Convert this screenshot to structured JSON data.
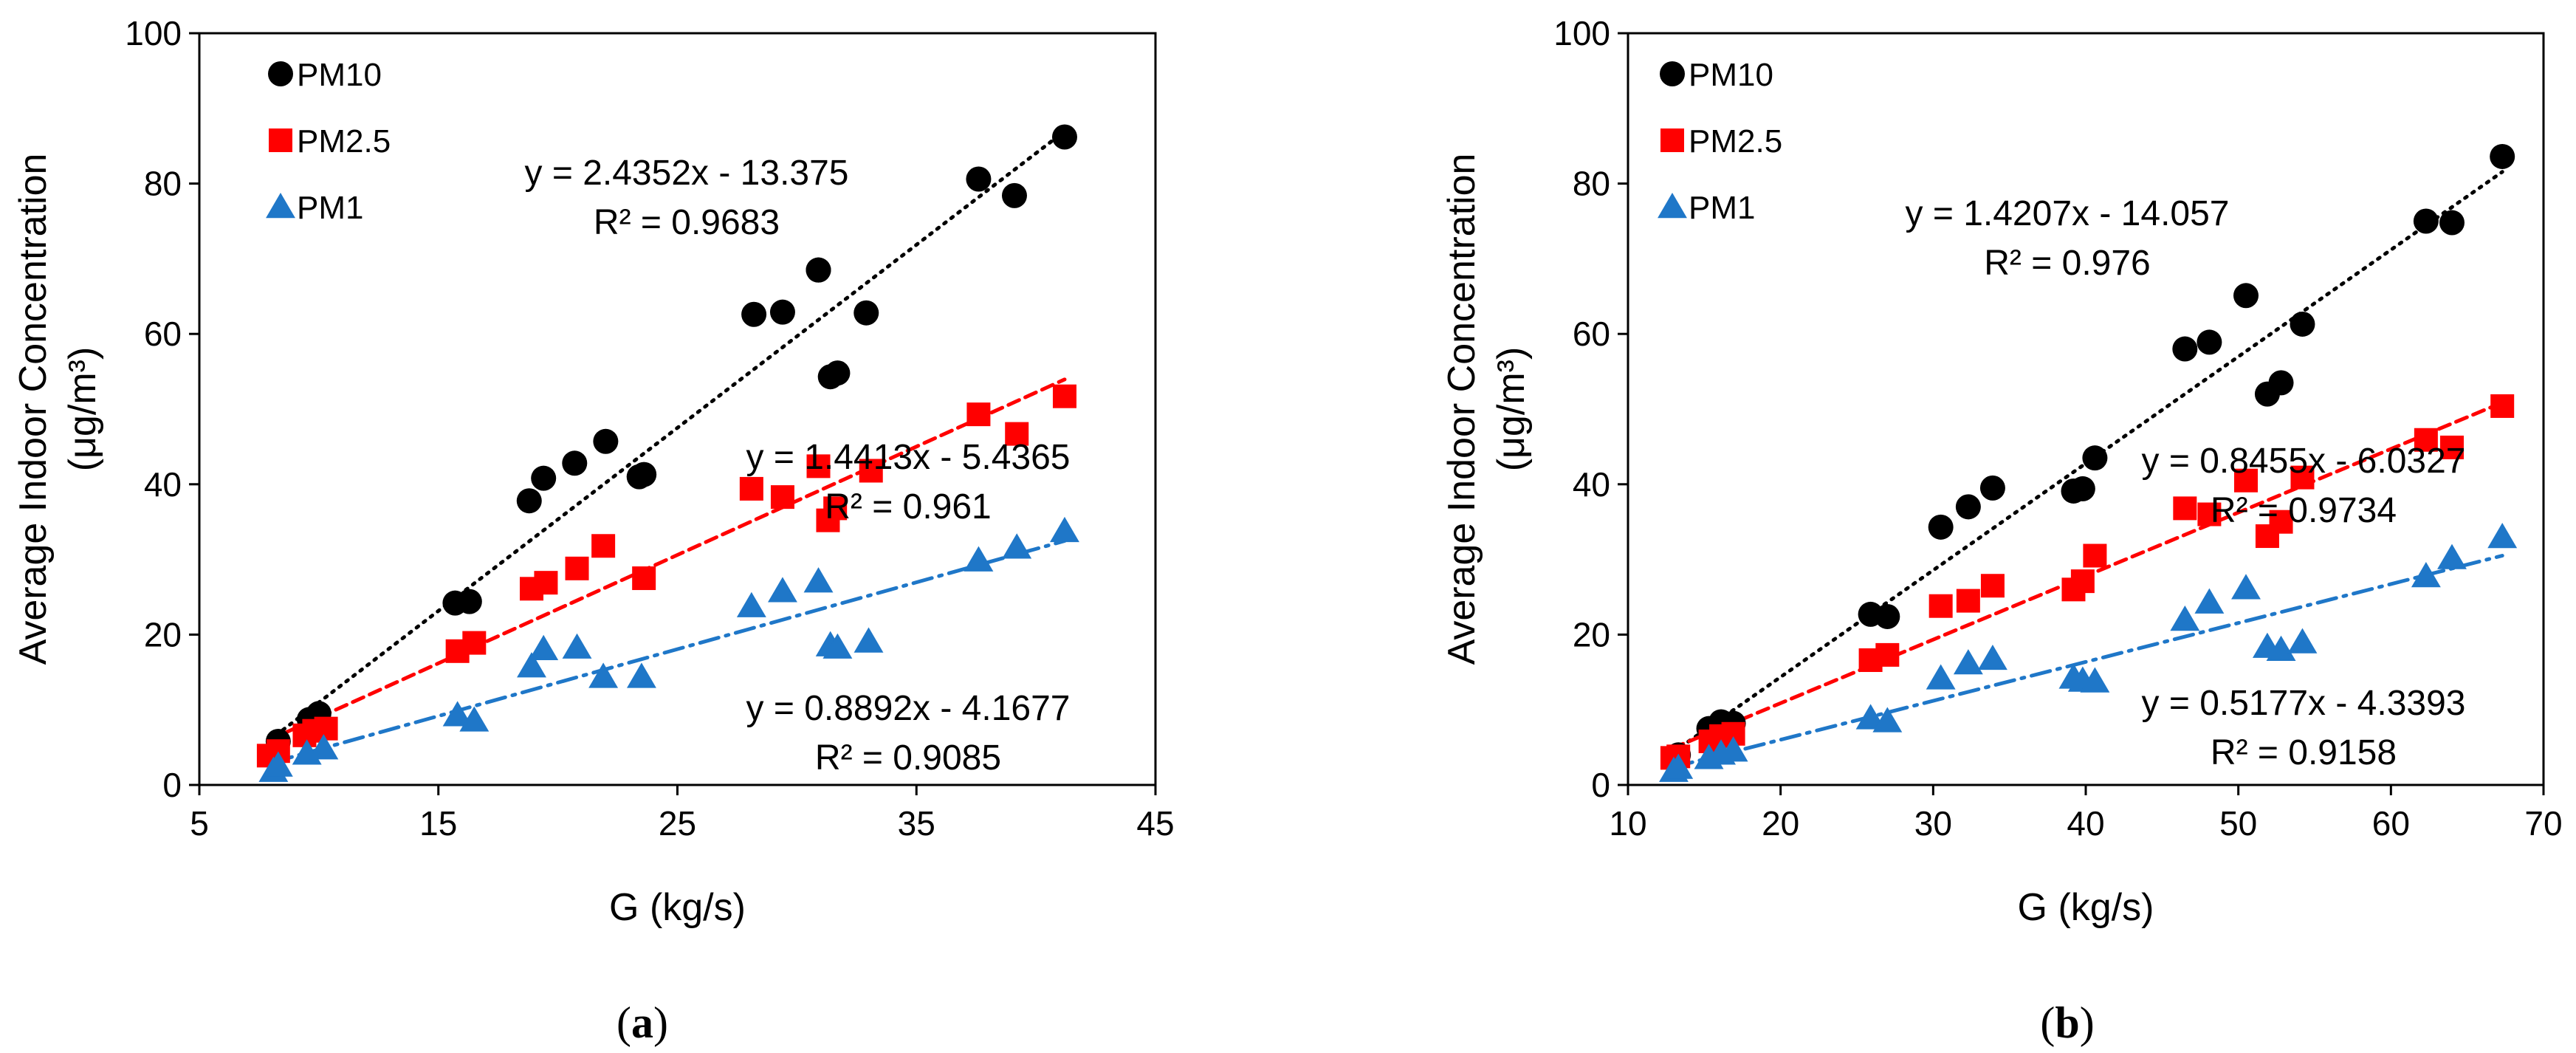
{
  "chart_data": [
    {
      "type": "scatter",
      "panel_label": "a",
      "xlabel": "G (kg/s)",
      "ylabel_line1": "Average Indoor Concentration",
      "ylabel_line2": "(μg/m³)",
      "xlim": [
        5,
        45
      ],
      "ylim": [
        0,
        100
      ],
      "xticks": [
        "5",
        "15",
        "25",
        "35",
        "45"
      ],
      "xtick_values": [
        5,
        15,
        25,
        35,
        45
      ],
      "yticks": [
        "0",
        "20",
        "40",
        "60",
        "80",
        "100"
      ],
      "ytick_values": [
        0,
        20,
        40,
        60,
        80,
        100
      ],
      "series": [
        {
          "name": "PM10",
          "marker": "circle",
          "color": "#000000",
          "x": [
            8.2,
            8.3,
            9.6,
            10.0,
            15.7,
            16.3,
            18.8,
            19.4,
            20.7,
            22.0,
            23.4,
            23.6,
            28.2,
            29.4,
            30.9,
            30.9,
            31.4,
            31.7,
            32.9,
            37.6,
            39.1,
            41.2
          ],
          "y": [
            4.4,
            5.8,
            8.7,
            9.5,
            24.2,
            24.4,
            37.8,
            40.8,
            42.8,
            45.7,
            41.0,
            41.3,
            62.6,
            62.9,
            68.5,
            68.5,
            54.3,
            54.8,
            62.8,
            80.6,
            78.4,
            86.2
          ],
          "trend": {
            "slope": 2.4352,
            "intercept": -13.375,
            "style": "dotted",
            "x_range": [
              8.2,
              41.2
            ]
          },
          "equation": "y = 2.4352x - 13.375",
          "r2": "R² = 0.9683"
        },
        {
          "name": "PM2.5",
          "marker": "square",
          "color": "#ff0000",
          "x": [
            7.9,
            8.3,
            9.4,
            9.8,
            10.3,
            15.8,
            16.5,
            18.9,
            19.5,
            20.8,
            21.9,
            23.6,
            28.1,
            29.4,
            30.9,
            31.3,
            31.6,
            33.1,
            37.6,
            39.2,
            41.2
          ],
          "y": [
            3.9,
            4.5,
            6.6,
            7.2,
            7.5,
            17.8,
            18.9,
            26.1,
            26.9,
            28.8,
            31.8,
            27.5,
            39.4,
            38.3,
            42.4,
            35.2,
            36.8,
            41.8,
            49.3,
            46.7,
            51.7
          ],
          "trend": {
            "slope": 1.4413,
            "intercept": -5.4365,
            "style": "dashed",
            "x_range": [
              7.9,
              41.2
            ]
          },
          "equation": "y = 1.4413x - 5.4365",
          "r2": "R² = 0.961"
        },
        {
          "name": "PM1",
          "marker": "triangle",
          "color": "#1f77c8",
          "x": [
            8.1,
            8.3,
            9.5,
            10.2,
            15.8,
            16.5,
            18.9,
            19.4,
            20.8,
            21.9,
            23.5,
            28.1,
            29.4,
            30.9,
            31.4,
            31.7,
            33.0,
            37.6,
            39.2,
            41.2
          ],
          "y": [
            1.9,
            2.6,
            4.2,
            4.9,
            9.3,
            8.6,
            15.8,
            18.1,
            18.3,
            14.4,
            14.4,
            23.8,
            25.8,
            27.1,
            18.6,
            18.3,
            19.1,
            29.9,
            31.6,
            33.8
          ],
          "trend": {
            "slope": 0.8892,
            "intercept": -4.1677,
            "style": "dashdot",
            "x_range": [
              8.1,
              41.2
            ]
          },
          "equation": "y = 0.8892x - 4.1677",
          "r2": "R² = 0.9085"
        }
      ]
    },
    {
      "type": "scatter",
      "panel_label": "b",
      "xlabel": "G (kg/s)",
      "ylabel_line1": "Average Indoor Concentration",
      "ylabel_line2": "(μg/m³)",
      "xlim": [
        10,
        70
      ],
      "ylim": [
        0,
        100
      ],
      "xticks": [
        "10",
        "20",
        "30",
        "40",
        "50",
        "60",
        "70"
      ],
      "xtick_values": [
        10,
        20,
        30,
        40,
        50,
        60,
        70
      ],
      "yticks": [
        "0",
        "20",
        "40",
        "60",
        "80",
        "100"
      ],
      "ytick_values": [
        0,
        20,
        40,
        60,
        80,
        100
      ],
      "series": [
        {
          "name": "PM10",
          "marker": "circle",
          "color": "#000000",
          "x": [
            13.0,
            13.3,
            15.3,
            16.1,
            16.9,
            25.9,
            27.0,
            30.5,
            32.3,
            33.9,
            39.2,
            39.8,
            40.6,
            46.5,
            48.1,
            50.5,
            51.9,
            52.8,
            54.2,
            62.3,
            64.0,
            67.3
          ],
          "y": [
            3.6,
            4.0,
            7.5,
            8.4,
            8.2,
            22.7,
            22.4,
            34.3,
            37.0,
            39.5,
            39.1,
            39.4,
            43.5,
            58.0,
            58.9,
            65.1,
            52.0,
            53.5,
            61.3,
            75.0,
            74.8,
            83.6
          ],
          "trend": {
            "slope": 1.4207,
            "intercept": -14.057,
            "style": "dotted",
            "x_range": [
              13.0,
              67.3
            ]
          },
          "equation": "y = 1.4207x - 14.057",
          "r2": "R² = 0.976"
        },
        {
          "name": "PM2.5",
          "marker": "square",
          "color": "#ff0000",
          "x": [
            12.9,
            13.3,
            15.4,
            16.1,
            16.9,
            25.9,
            27.0,
            30.5,
            32.3,
            33.9,
            39.2,
            39.8,
            40.6,
            46.5,
            48.1,
            50.5,
            51.9,
            52.8,
            54.2,
            62.3,
            64.0,
            67.3
          ],
          "y": [
            3.6,
            3.8,
            5.8,
            6.5,
            6.8,
            16.6,
            17.3,
            23.8,
            24.5,
            26.5,
            26.0,
            27.1,
            30.5,
            36.8,
            36.0,
            40.5,
            33.1,
            35.0,
            40.9,
            45.9,
            44.9,
            50.4
          ],
          "trend": {
            "slope": 0.8455,
            "intercept": -6.0327,
            "style": "dashed",
            "x_range": [
              12.9,
              67.3
            ]
          },
          "equation": "y = 0.8455x - 6.0327",
          "r2": "R² = 0.9734"
        },
        {
          "name": "PM1",
          "marker": "triangle",
          "color": "#1f77c8",
          "x": [
            13.0,
            13.3,
            15.3,
            16.1,
            16.9,
            25.9,
            27.0,
            30.5,
            32.3,
            33.9,
            39.2,
            39.8,
            40.6,
            46.5,
            48.1,
            50.5,
            51.9,
            52.8,
            54.2,
            62.3,
            64.0,
            67.3
          ],
          "y": [
            1.9,
            2.3,
            3.6,
            4.2,
            4.6,
            8.9,
            8.5,
            14.2,
            16.2,
            16.8,
            14.3,
            13.9,
            13.8,
            22.0,
            24.3,
            26.2,
            18.4,
            18.0,
            19.0,
            27.8,
            30.2,
            33.0
          ],
          "trend": {
            "slope": 0.5177,
            "intercept": -4.3393,
            "style": "dashdot",
            "x_range": [
              13.0,
              67.3
            ]
          },
          "equation": "y = 0.5177x - 4.3393",
          "r2": "R² = 0.9158"
        }
      ]
    }
  ]
}
